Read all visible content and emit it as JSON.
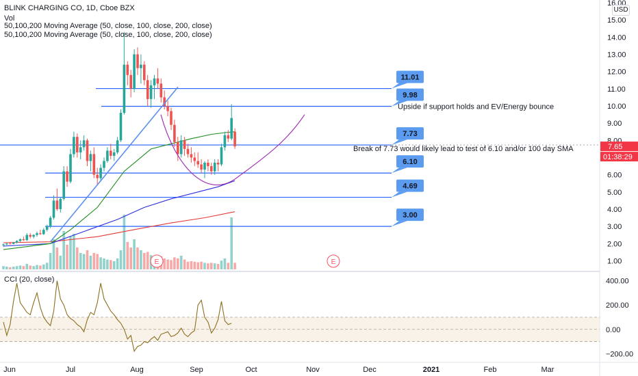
{
  "header": {
    "title": "BLINK CHARGING CO, 1D, Cboe BZX",
    "vol_label": "Vol",
    "ma_label_1": "50,100,200 Moving Average (50, close, 100, close, 200, close)",
    "ma_label_2": "50,100,200 Moving Average (50, close, 100, close, 200, close)",
    "currency": "USD",
    "cci_label": "CCI (20, close)"
  },
  "colors": {
    "up": "#26a69a",
    "down": "#ef5350",
    "hline": "#2962ff",
    "ma50": "#1e8e1e",
    "ma100": "#2a2ee0",
    "ma200": "#e53935",
    "arc": "#9c27b0",
    "cci": "#8d6e1f",
    "callout": "#5b9cf0",
    "price_tag": "#f23645"
  },
  "chart_data": [
    {
      "type": "candlestick",
      "title": "BLINK CHARGING CO, 1D, Cboe BZX",
      "x_tick_labels": [
        "Jun",
        "Jul",
        "Aug",
        "Sep",
        "Oct",
        "Nov",
        "Dec",
        "2021",
        "Feb",
        "Mar"
      ],
      "y_tick_labels": [
        "1.00",
        "2.00",
        "3.00",
        "4.00",
        "5.00",
        "6.00",
        "7.00",
        "8.00",
        "9.00",
        "10.00",
        "11.00",
        "12.00",
        "13.00",
        "14.00",
        "15.00",
        "16.00"
      ],
      "ylim": [
        0.5,
        16.0
      ],
      "last_price": "7.65",
      "countdown": "01:38:29",
      "levels": [
        {
          "value": 11.01,
          "label": "11.01"
        },
        {
          "value": 9.98,
          "label": "9.98"
        },
        {
          "value": 7.73,
          "label": "7.73"
        },
        {
          "value": 6.1,
          "label": "6.10"
        },
        {
          "value": 4.69,
          "label": "4.69"
        },
        {
          "value": 3.0,
          "label": "3.00"
        }
      ],
      "annotations": [
        "Upside if support holds and EV/Energy bounce",
        "Break of 7.73 would likely lead to test of 6.10  and/or 100 day SMA"
      ],
      "earnings_marker": "E",
      "candles": [
        {
          "t": 0,
          "o": 1.9,
          "h": 2.0,
          "l": 1.8,
          "c": 1.95,
          "v": 0.06
        },
        {
          "t": 1,
          "o": 1.95,
          "h": 2.05,
          "l": 1.9,
          "c": 2.0,
          "v": 0.05
        },
        {
          "t": 2,
          "o": 2.0,
          "h": 2.1,
          "l": 1.95,
          "c": 1.98,
          "v": 0.04
        },
        {
          "t": 3,
          "o": 1.98,
          "h": 2.1,
          "l": 1.95,
          "c": 2.05,
          "v": 0.05
        },
        {
          "t": 4,
          "o": 2.05,
          "h": 2.2,
          "l": 2.0,
          "c": 2.15,
          "v": 0.06
        },
        {
          "t": 5,
          "o": 2.15,
          "h": 2.3,
          "l": 2.1,
          "c": 2.25,
          "v": 0.07
        },
        {
          "t": 6,
          "o": 2.25,
          "h": 2.4,
          "l": 2.15,
          "c": 2.2,
          "v": 0.06
        },
        {
          "t": 7,
          "o": 2.2,
          "h": 2.6,
          "l": 2.15,
          "c": 2.5,
          "v": 0.1
        },
        {
          "t": 8,
          "o": 2.5,
          "h": 2.6,
          "l": 2.3,
          "c": 2.4,
          "v": 0.07
        },
        {
          "t": 9,
          "o": 2.4,
          "h": 2.55,
          "l": 2.3,
          "c": 2.5,
          "v": 0.06
        },
        {
          "t": 10,
          "o": 2.5,
          "h": 2.7,
          "l": 2.4,
          "c": 2.6,
          "v": 0.08
        },
        {
          "t": 11,
          "o": 2.6,
          "h": 2.8,
          "l": 2.5,
          "c": 2.55,
          "v": 0.07
        },
        {
          "t": 12,
          "o": 2.55,
          "h": 2.9,
          "l": 2.5,
          "c": 2.8,
          "v": 0.09
        },
        {
          "t": 13,
          "o": 2.8,
          "h": 3.1,
          "l": 2.7,
          "c": 3.0,
          "v": 0.12
        },
        {
          "t": 14,
          "o": 3.0,
          "h": 3.6,
          "l": 2.9,
          "c": 3.5,
          "v": 0.3
        },
        {
          "t": 15,
          "o": 3.5,
          "h": 4.8,
          "l": 3.4,
          "c": 4.5,
          "v": 0.55
        },
        {
          "t": 16,
          "o": 4.5,
          "h": 5.2,
          "l": 3.9,
          "c": 4.0,
          "v": 0.4
        },
        {
          "t": 17,
          "o": 4.0,
          "h": 4.7,
          "l": 3.8,
          "c": 4.6,
          "v": 0.25
        },
        {
          "t": 18,
          "o": 4.6,
          "h": 6.5,
          "l": 4.5,
          "c": 6.2,
          "v": 0.7
        },
        {
          "t": 19,
          "o": 6.2,
          "h": 6.5,
          "l": 5.3,
          "c": 5.6,
          "v": 0.45
        },
        {
          "t": 20,
          "o": 5.6,
          "h": 7.5,
          "l": 5.5,
          "c": 7.2,
          "v": 0.6
        },
        {
          "t": 21,
          "o": 7.2,
          "h": 8.5,
          "l": 7.0,
          "c": 8.2,
          "v": 0.65
        },
        {
          "t": 22,
          "o": 8.2,
          "h": 8.4,
          "l": 7.0,
          "c": 7.3,
          "v": 0.4
        },
        {
          "t": 23,
          "o": 7.3,
          "h": 8.0,
          "l": 6.9,
          "c": 7.6,
          "v": 0.3
        },
        {
          "t": 24,
          "o": 7.6,
          "h": 8.3,
          "l": 7.4,
          "c": 8.0,
          "v": 0.28
        },
        {
          "t": 25,
          "o": 8.0,
          "h": 8.1,
          "l": 6.5,
          "c": 6.8,
          "v": 0.35
        },
        {
          "t": 26,
          "o": 6.8,
          "h": 7.4,
          "l": 6.2,
          "c": 7.2,
          "v": 0.25
        },
        {
          "t": 27,
          "o": 7.2,
          "h": 7.6,
          "l": 5.8,
          "c": 6.0,
          "v": 0.3
        },
        {
          "t": 28,
          "o": 6.0,
          "h": 6.4,
          "l": 5.4,
          "c": 5.8,
          "v": 0.28
        },
        {
          "t": 29,
          "o": 5.8,
          "h": 6.6,
          "l": 5.6,
          "c": 6.4,
          "v": 0.22
        },
        {
          "t": 30,
          "o": 6.4,
          "h": 7.0,
          "l": 6.2,
          "c": 6.8,
          "v": 0.2
        },
        {
          "t": 31,
          "o": 6.8,
          "h": 7.6,
          "l": 6.7,
          "c": 7.4,
          "v": 0.18
        },
        {
          "t": 32,
          "o": 7.4,
          "h": 7.8,
          "l": 6.9,
          "c": 7.1,
          "v": 0.17
        },
        {
          "t": 33,
          "o": 7.1,
          "h": 7.5,
          "l": 6.8,
          "c": 7.3,
          "v": 0.15
        },
        {
          "t": 34,
          "o": 7.3,
          "h": 8.2,
          "l": 7.2,
          "c": 8.0,
          "v": 0.2
        },
        {
          "t": 35,
          "o": 8.0,
          "h": 9.8,
          "l": 7.9,
          "c": 9.6,
          "v": 0.35
        },
        {
          "t": 36,
          "o": 9.6,
          "h": 14.3,
          "l": 9.5,
          "c": 12.4,
          "v": 1.0
        },
        {
          "t": 37,
          "o": 12.4,
          "h": 12.6,
          "l": 11.2,
          "c": 11.8,
          "v": 0.5
        },
        {
          "t": 38,
          "o": 11.8,
          "h": 12.1,
          "l": 10.5,
          "c": 11.0,
          "v": 0.4
        },
        {
          "t": 39,
          "o": 11.0,
          "h": 13.3,
          "l": 10.8,
          "c": 13.0,
          "v": 0.55
        },
        {
          "t": 40,
          "o": 13.0,
          "h": 13.4,
          "l": 11.8,
          "c": 12.2,
          "v": 0.4
        },
        {
          "t": 41,
          "o": 12.2,
          "h": 13.0,
          "l": 11.3,
          "c": 12.4,
          "v": 0.35
        },
        {
          "t": 42,
          "o": 12.4,
          "h": 12.6,
          "l": 11.2,
          "c": 11.5,
          "v": 0.3
        },
        {
          "t": 43,
          "o": 11.5,
          "h": 11.8,
          "l": 10.0,
          "c": 10.4,
          "v": 0.32
        },
        {
          "t": 44,
          "o": 10.4,
          "h": 11.5,
          "l": 9.9,
          "c": 11.2,
          "v": 0.26
        },
        {
          "t": 45,
          "o": 11.2,
          "h": 11.8,
          "l": 10.4,
          "c": 11.6,
          "v": 0.22
        },
        {
          "t": 46,
          "o": 11.6,
          "h": 12.2,
          "l": 11.0,
          "c": 11.3,
          "v": 0.2
        },
        {
          "t": 47,
          "o": 11.3,
          "h": 11.6,
          "l": 10.2,
          "c": 10.5,
          "v": 0.24
        },
        {
          "t": 48,
          "o": 10.5,
          "h": 10.9,
          "l": 9.8,
          "c": 10.0,
          "v": 0.2
        },
        {
          "t": 49,
          "o": 10.0,
          "h": 10.3,
          "l": 9.4,
          "c": 9.7,
          "v": 0.18
        },
        {
          "t": 50,
          "o": 9.7,
          "h": 9.9,
          "l": 8.6,
          "c": 8.9,
          "v": 0.17
        },
        {
          "t": 51,
          "o": 8.9,
          "h": 9.2,
          "l": 7.6,
          "c": 7.9,
          "v": 0.22
        },
        {
          "t": 52,
          "o": 7.9,
          "h": 8.2,
          "l": 6.8,
          "c": 7.2,
          "v": 0.2
        },
        {
          "t": 53,
          "o": 7.2,
          "h": 8.3,
          "l": 7.0,
          "c": 8.0,
          "v": 0.25
        },
        {
          "t": 54,
          "o": 8.0,
          "h": 8.2,
          "l": 7.1,
          "c": 7.5,
          "v": 0.18
        },
        {
          "t": 55,
          "o": 7.5,
          "h": 7.8,
          "l": 7.0,
          "c": 7.2,
          "v": 0.14
        },
        {
          "t": 56,
          "o": 7.2,
          "h": 7.6,
          "l": 6.7,
          "c": 7.0,
          "v": 0.15
        },
        {
          "t": 57,
          "o": 7.0,
          "h": 7.3,
          "l": 6.5,
          "c": 6.8,
          "v": 0.14
        },
        {
          "t": 58,
          "o": 6.8,
          "h": 7.3,
          "l": 6.4,
          "c": 6.6,
          "v": 0.13
        },
        {
          "t": 59,
          "o": 6.6,
          "h": 6.9,
          "l": 6.1,
          "c": 6.3,
          "v": 0.14
        },
        {
          "t": 60,
          "o": 6.3,
          "h": 6.8,
          "l": 5.8,
          "c": 6.7,
          "v": 0.12
        },
        {
          "t": 61,
          "o": 6.7,
          "h": 6.9,
          "l": 6.2,
          "c": 6.5,
          "v": 0.11
        },
        {
          "t": 62,
          "o": 6.5,
          "h": 6.7,
          "l": 6.0,
          "c": 6.2,
          "v": 0.12
        },
        {
          "t": 63,
          "o": 6.2,
          "h": 6.9,
          "l": 6.0,
          "c": 6.7,
          "v": 0.11
        },
        {
          "t": 64,
          "o": 6.7,
          "h": 6.9,
          "l": 6.2,
          "c": 6.6,
          "v": 0.1
        },
        {
          "t": 65,
          "o": 6.6,
          "h": 7.8,
          "l": 6.5,
          "c": 7.6,
          "v": 0.16
        },
        {
          "t": 66,
          "o": 7.6,
          "h": 8.5,
          "l": 7.4,
          "c": 8.3,
          "v": 0.2
        },
        {
          "t": 67,
          "o": 8.3,
          "h": 8.6,
          "l": 7.9,
          "c": 8.1,
          "v": 0.12
        },
        {
          "t": 68,
          "o": 8.1,
          "h": 10.1,
          "l": 8.0,
          "c": 9.3,
          "v": 0.95
        },
        {
          "t": 69,
          "o": 8.5,
          "h": 8.7,
          "l": 7.5,
          "c": 7.65,
          "v": 0.12
        }
      ],
      "ma50": [
        [
          0,
          1.65
        ],
        [
          14,
          2.0
        ],
        [
          20,
          2.8
        ],
        [
          28,
          4.1
        ],
        [
          36,
          6.2
        ],
        [
          44,
          7.5
        ],
        [
          50,
          7.8
        ],
        [
          56,
          8.1
        ],
        [
          62,
          8.35
        ],
        [
          66,
          8.45
        ],
        [
          69,
          8.5
        ]
      ],
      "ma100": [
        [
          0,
          1.85
        ],
        [
          14,
          2.0
        ],
        [
          24,
          2.7
        ],
        [
          34,
          3.4
        ],
        [
          42,
          4.1
        ],
        [
          50,
          4.6
        ],
        [
          58,
          5.0
        ],
        [
          64,
          5.3
        ],
        [
          69,
          5.65
        ]
      ],
      "ma200": [
        [
          0,
          2.05
        ],
        [
          14,
          2.1
        ],
        [
          28,
          2.4
        ],
        [
          40,
          2.85
        ],
        [
          50,
          3.2
        ],
        [
          60,
          3.5
        ],
        [
          69,
          3.85
        ]
      ]
    },
    {
      "type": "line",
      "title": "CCI (20, close)",
      "y_tick_labels": [
        "400.00",
        "200.00",
        "0.00",
        "−200.00"
      ],
      "ylim": [
        -260,
        460
      ],
      "band": [
        -100,
        100
      ],
      "values": [
        60,
        -50,
        40,
        230,
        380,
        220,
        180,
        140,
        120,
        220,
        300,
        180,
        100,
        60,
        30,
        150,
        400,
        250,
        200,
        120,
        90,
        70,
        40,
        20,
        -20,
        80,
        140,
        120,
        220,
        380,
        250,
        200,
        150,
        120,
        80,
        50,
        0,
        -80,
        -50,
        -180,
        -140,
        -130,
        -100,
        -110,
        -80,
        -60,
        -90,
        -40,
        -30,
        -20,
        -60,
        -50,
        -30,
        10,
        -40,
        -60,
        -30,
        -10,
        200,
        240,
        100,
        60,
        -30,
        10,
        80,
        230,
        70,
        40,
        50
      ]
    }
  ]
}
